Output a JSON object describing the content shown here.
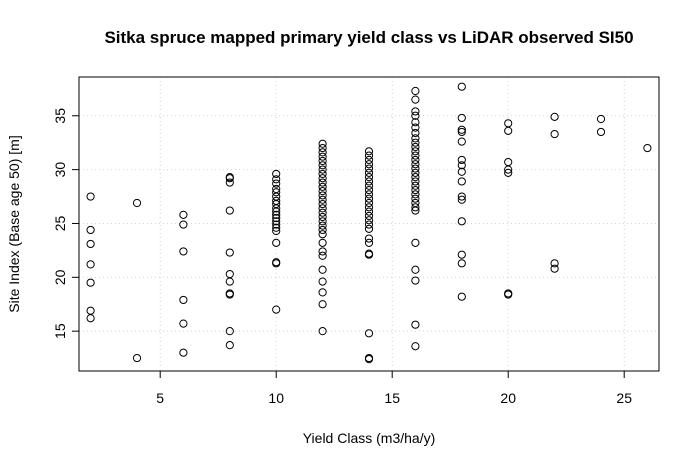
{
  "chart_data": {
    "type": "scatter",
    "title": "Sitka spruce mapped primary yield class vs LiDAR observed SI50",
    "xlabel": "Yield Class (m3/ha/y)",
    "ylabel": "Site Index (Base age 50) [m]",
    "xlim": [
      1.5,
      26.5
    ],
    "ylim": [
      11.3,
      38.6
    ],
    "xticks": [
      5,
      10,
      15,
      20,
      25
    ],
    "yticks": [
      15,
      20,
      25,
      30,
      35
    ],
    "grid": true,
    "marker": "open-circle",
    "series": [
      {
        "points": [
          [
            2,
            27.5
          ],
          [
            2,
            24.4
          ],
          [
            2,
            23.1
          ],
          [
            2,
            21.2
          ],
          [
            2,
            19.5
          ],
          [
            2,
            16.9
          ],
          [
            2,
            16.2
          ],
          [
            4,
            26.9
          ],
          [
            4,
            12.5
          ],
          [
            6,
            25.8
          ],
          [
            6,
            24.9
          ],
          [
            6,
            22.4
          ],
          [
            6,
            17.9
          ],
          [
            6,
            15.7
          ],
          [
            6,
            13.0
          ],
          [
            8,
            29.3
          ],
          [
            8,
            29.2
          ],
          [
            8,
            28.8
          ],
          [
            8,
            26.2
          ],
          [
            8,
            22.3
          ],
          [
            8,
            20.3
          ],
          [
            8,
            19.6
          ],
          [
            8,
            18.5
          ],
          [
            8,
            18.4
          ],
          [
            8,
            15.0
          ],
          [
            8,
            13.7
          ],
          [
            10,
            29.6
          ],
          [
            10,
            29.1
          ],
          [
            10,
            28.7
          ],
          [
            10,
            28.2
          ],
          [
            10,
            27.9
          ],
          [
            10,
            27.5
          ],
          [
            10,
            27.1
          ],
          [
            10,
            26.8
          ],
          [
            10,
            26.4
          ],
          [
            10,
            26.1
          ],
          [
            10,
            25.8
          ],
          [
            10,
            25.5
          ],
          [
            10,
            25.2
          ],
          [
            10,
            24.9
          ],
          [
            10,
            24.6
          ],
          [
            10,
            24.3
          ],
          [
            10,
            23.2
          ],
          [
            10,
            21.4
          ],
          [
            10,
            21.3
          ],
          [
            10,
            17.0
          ],
          [
            12,
            32.4
          ],
          [
            12,
            32.0
          ],
          [
            12,
            31.6
          ],
          [
            12,
            31.2
          ],
          [
            12,
            30.8
          ],
          [
            12,
            30.4
          ],
          [
            12,
            30.0
          ],
          [
            12,
            29.6
          ],
          [
            12,
            29.2
          ],
          [
            12,
            28.8
          ],
          [
            12,
            28.4
          ],
          [
            12,
            28.0
          ],
          [
            12,
            27.6
          ],
          [
            12,
            27.2
          ],
          [
            12,
            26.8
          ],
          [
            12,
            26.4
          ],
          [
            12,
            26.0
          ],
          [
            12,
            25.6
          ],
          [
            12,
            25.2
          ],
          [
            12,
            24.8
          ],
          [
            12,
            24.4
          ],
          [
            12,
            24.0
          ],
          [
            12,
            23.2
          ],
          [
            12,
            22.4
          ],
          [
            12,
            22.0
          ],
          [
            12,
            20.7
          ],
          [
            12,
            19.6
          ],
          [
            12,
            18.6
          ],
          [
            12,
            17.5
          ],
          [
            12,
            15.0
          ],
          [
            14,
            31.7
          ],
          [
            14,
            31.3
          ],
          [
            14,
            30.9
          ],
          [
            14,
            30.5
          ],
          [
            14,
            30.1
          ],
          [
            14,
            29.7
          ],
          [
            14,
            29.3
          ],
          [
            14,
            28.9
          ],
          [
            14,
            28.5
          ],
          [
            14,
            28.1
          ],
          [
            14,
            27.7
          ],
          [
            14,
            27.3
          ],
          [
            14,
            26.9
          ],
          [
            14,
            26.5
          ],
          [
            14,
            26.1
          ],
          [
            14,
            25.7
          ],
          [
            14,
            25.3
          ],
          [
            14,
            24.9
          ],
          [
            14,
            24.5
          ],
          [
            14,
            23.6
          ],
          [
            14,
            23.2
          ],
          [
            14,
            22.2
          ],
          [
            14,
            22.1
          ],
          [
            14,
            14.8
          ],
          [
            14,
            12.5
          ],
          [
            14,
            12.4
          ],
          [
            16,
            37.3
          ],
          [
            16,
            36.5
          ],
          [
            16,
            35.4
          ],
          [
            16,
            35.0
          ],
          [
            16,
            34.4
          ],
          [
            16,
            33.9
          ],
          [
            16,
            33.4
          ],
          [
            16,
            32.9
          ],
          [
            16,
            32.5
          ],
          [
            16,
            32.1
          ],
          [
            16,
            31.7
          ],
          [
            16,
            31.3
          ],
          [
            16,
            30.9
          ],
          [
            16,
            30.5
          ],
          [
            16,
            30.1
          ],
          [
            16,
            29.7
          ],
          [
            16,
            29.3
          ],
          [
            16,
            28.9
          ],
          [
            16,
            28.5
          ],
          [
            16,
            28.1
          ],
          [
            16,
            27.7
          ],
          [
            16,
            27.3
          ],
          [
            16,
            26.9
          ],
          [
            16,
            26.5
          ],
          [
            16,
            26.2
          ],
          [
            16,
            23.2
          ],
          [
            16,
            20.7
          ],
          [
            16,
            19.7
          ],
          [
            16,
            15.6
          ],
          [
            16,
            13.6
          ],
          [
            18,
            37.7
          ],
          [
            18,
            34.8
          ],
          [
            18,
            33.7
          ],
          [
            18,
            33.5
          ],
          [
            18,
            32.6
          ],
          [
            18,
            30.9
          ],
          [
            18,
            30.4
          ],
          [
            18,
            29.8
          ],
          [
            18,
            28.9
          ],
          [
            18,
            27.5
          ],
          [
            18,
            27.2
          ],
          [
            18,
            25.2
          ],
          [
            18,
            22.1
          ],
          [
            18,
            21.3
          ],
          [
            18,
            18.2
          ],
          [
            20,
            34.3
          ],
          [
            20,
            33.6
          ],
          [
            20,
            30.7
          ],
          [
            20,
            30.0
          ],
          [
            20,
            29.7
          ],
          [
            20,
            18.5
          ],
          [
            20,
            18.4
          ],
          [
            22,
            34.9
          ],
          [
            22,
            33.3
          ],
          [
            22,
            21.3
          ],
          [
            22,
            20.8
          ],
          [
            24,
            34.7
          ],
          [
            24,
            33.5
          ],
          [
            26,
            32.0
          ]
        ]
      }
    ]
  }
}
